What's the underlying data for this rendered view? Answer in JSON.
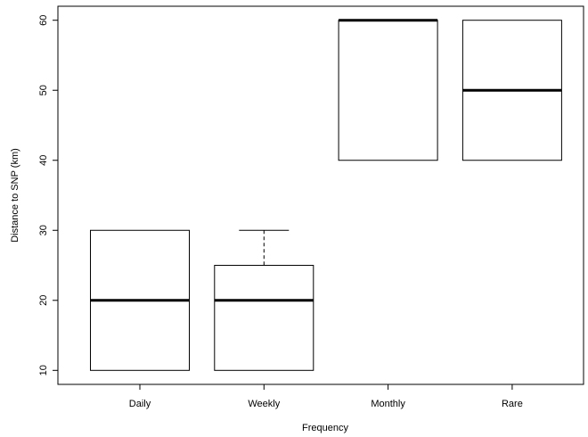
{
  "chart_data": {
    "type": "boxplot",
    "xlabel": "Frequency",
    "ylabel": "Distance to SNP (km)",
    "ylim": [
      8,
      62
    ],
    "yticks": [
      10,
      20,
      30,
      40,
      50,
      60
    ],
    "categories": [
      "Daily",
      "Weekly",
      "Monthly",
      "Rare"
    ],
    "boxes": [
      {
        "label": "Daily",
        "whisker_low": 10,
        "q1": 10,
        "median": 20,
        "q3": 30,
        "whisker_high": 30
      },
      {
        "label": "Weekly",
        "whisker_low": 10,
        "q1": 10,
        "median": 20,
        "q3": 25,
        "whisker_high": 30
      },
      {
        "label": "Monthly",
        "whisker_low": 40,
        "q1": 40,
        "median": 60,
        "q3": 60,
        "whisker_high": 60
      },
      {
        "label": "Rare",
        "whisker_low": 40,
        "q1": 40,
        "median": 50,
        "q3": 60,
        "whisker_high": 60
      }
    ],
    "grid": false,
    "legend": "none",
    "colors": {
      "box_fill": "#ffffff",
      "stroke": "#000000"
    }
  }
}
